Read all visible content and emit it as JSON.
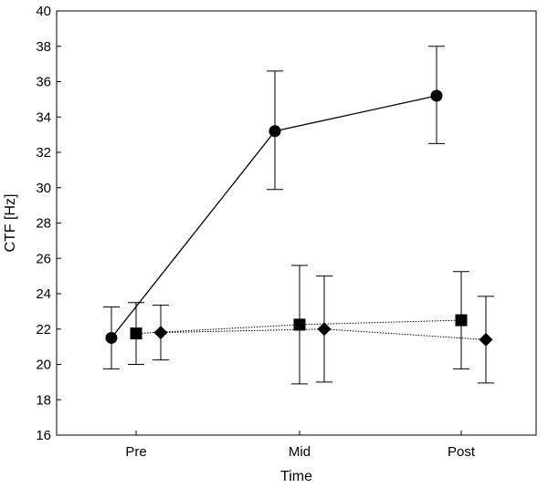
{
  "chart_data": {
    "type": "line",
    "title": "",
    "xlabel": "Time",
    "ylabel": "CTF [Hz]",
    "categories": [
      "Pre",
      "Mid",
      "Post"
    ],
    "ylim": [
      16,
      40
    ],
    "yticks": [
      16,
      18,
      20,
      22,
      24,
      26,
      28,
      30,
      32,
      34,
      36,
      38,
      40
    ],
    "grid": false,
    "legend": "none",
    "series": [
      {
        "marker": "circle",
        "line_style": "solid",
        "color": "#000000",
        "values": [
          21.5,
          33.2,
          35.2
        ],
        "error_low": [
          19.75,
          29.9,
          32.5
        ],
        "error_high": [
          23.25,
          36.6,
          38.0
        ]
      },
      {
        "marker": "square",
        "line_style": "dotted",
        "color": "#000000",
        "values": [
          21.75,
          22.25,
          22.5
        ],
        "error_low": [
          20.0,
          18.9,
          19.75
        ],
        "error_high": [
          23.5,
          25.6,
          25.25
        ]
      },
      {
        "marker": "diamond",
        "line_style": "dotted",
        "color": "#000000",
        "values": [
          21.8,
          22.0,
          21.4
        ],
        "error_low": [
          20.25,
          19.0,
          18.95
        ],
        "error_high": [
          23.35,
          25.0,
          23.85
        ]
      }
    ]
  }
}
